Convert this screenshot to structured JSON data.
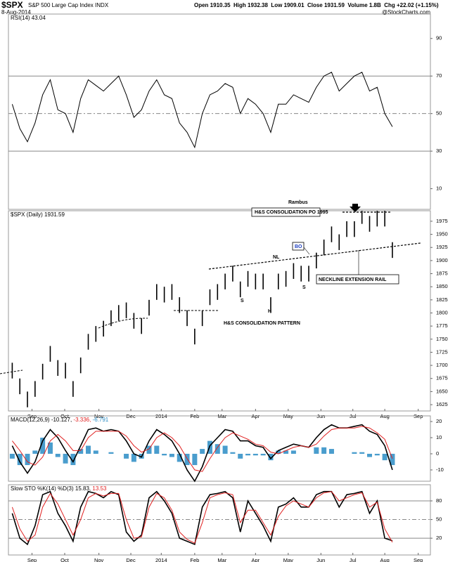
{
  "header": {
    "symbol": "$SPX",
    "name": "S&P 500 Large Cap Index",
    "exchange": "INDX",
    "date": "8-Aug-2014",
    "quote": "Open 1910.35  High 1932.38  Low 1909.01  Close 1931.59  Volume 1.8B  Chg +22.02 (+1.15%)",
    "watermark": "@StockCharts.com"
  },
  "chart_data": [
    {
      "type": "line",
      "title": "RSI(14) 43.04",
      "color": "#000000",
      "values": [
        55,
        42,
        35,
        45,
        60,
        68,
        52,
        50,
        40,
        58,
        68,
        65,
        62,
        66,
        70,
        60,
        48,
        52,
        62,
        68,
        60,
        58,
        45,
        40,
        32,
        50,
        60,
        62,
        66,
        64,
        50,
        58,
        55,
        50,
        40,
        55,
        55,
        60,
        58,
        56,
        64,
        70,
        72,
        62,
        66,
        70,
        72,
        62,
        64,
        50,
        43
      ],
      "xlim": [
        -0.5,
        55
      ],
      "ylim": [
        -1,
        103
      ],
      "yticks": [
        10,
        30,
        50,
        70,
        90
      ],
      "hlines": [
        {
          "value": 70,
          "style": "solid"
        },
        {
          "value": 50,
          "style": "dashed"
        },
        {
          "value": 30,
          "style": "solid"
        }
      ]
    },
    {
      "type": "ohlc",
      "title": "$SPX (Daily) 1931.59",
      "color": "#000000",
      "high": [
        1705,
        1675,
        1650,
        1670,
        1703,
        1737,
        1710,
        1705,
        1670,
        1715,
        1760,
        1775,
        1785,
        1805,
        1815,
        1820,
        1800,
        1790,
        1825,
        1855,
        1850,
        1855,
        1830,
        1805,
        1770,
        1805,
        1845,
        1855,
        1875,
        1890,
        1860,
        1880,
        1875,
        1875,
        1830,
        1875,
        1880,
        1895,
        1890,
        1890,
        1915,
        1940,
        1965,
        1950,
        1975,
        1975,
        1995,
        1985,
        1995,
        1995,
        1935
      ],
      "low": [
        1675,
        1645,
        1620,
        1640,
        1673,
        1707,
        1680,
        1675,
        1640,
        1685,
        1730,
        1745,
        1755,
        1775,
        1785,
        1790,
        1770,
        1760,
        1795,
        1825,
        1820,
        1825,
        1800,
        1775,
        1740,
        1775,
        1815,
        1825,
        1845,
        1860,
        1830,
        1850,
        1845,
        1845,
        1800,
        1845,
        1850,
        1865,
        1860,
        1860,
        1885,
        1910,
        1935,
        1920,
        1945,
        1945,
        1970,
        1955,
        1965,
        1965,
        1905
      ],
      "xlim": [
        -0.5,
        55
      ],
      "ylim": [
        1613,
        1995
      ],
      "yticks": [
        1625,
        1650,
        1675,
        1700,
        1725,
        1750,
        1775,
        1800,
        1825,
        1850,
        1875,
        1900,
        1925,
        1950,
        1975
      ],
      "xticks": [
        {
          "value": 2.6,
          "label": "Sep"
        },
        {
          "value": 6.9,
          "label": "Oct"
        },
        {
          "value": 11.4,
          "label": "Nov"
        },
        {
          "value": 15.6,
          "label": "Dec"
        },
        {
          "value": 19.6,
          "label": "2014"
        },
        {
          "value": 24,
          "label": "Feb"
        },
        {
          "value": 27.6,
          "label": "Mar"
        },
        {
          "value": 32,
          "label": "Apr"
        },
        {
          "value": 36.3,
          "label": "May"
        },
        {
          "value": 40.6,
          "label": "Jun"
        },
        {
          "value": 44.8,
          "label": "Jul"
        },
        {
          "value": 49,
          "label": "Aug"
        },
        {
          "value": 53.4,
          "label": "Sep"
        }
      ],
      "annotations": [
        "Rambus",
        "H&S CONSOLIDATION PO 1995",
        "NL",
        "BO",
        "S",
        "H",
        "S",
        "H&S CONSOLIDATION PATTERN",
        "NECKLINE EXTENSION RAIL"
      ]
    },
    {
      "type": "line",
      "title": "MACD(12,26,9)",
      "series": [
        {
          "name": "-10.127,",
          "color": "#000000",
          "values": [
            5,
            -5,
            -12,
            -5,
            8,
            15,
            10,
            2,
            -5,
            5,
            15,
            16,
            14,
            15,
            14,
            8,
            0,
            -2,
            8,
            15,
            12,
            8,
            0,
            -10,
            -17,
            -8,
            5,
            10,
            15,
            14,
            8,
            8,
            5,
            4,
            -3,
            2,
            4,
            6,
            5,
            4,
            10,
            15,
            18,
            16,
            16,
            17,
            18,
            14,
            12,
            5,
            -10
          ]
        },
        {
          "name": "-3.336,",
          "color": "#e02020",
          "values": [
            8,
            2,
            -5,
            -7,
            -2,
            8,
            12,
            8,
            2,
            2,
            10,
            14,
            14,
            14,
            14,
            11,
            5,
            1,
            3,
            10,
            13,
            10,
            5,
            -3,
            -10,
            -11,
            -3,
            4,
            10,
            13,
            11,
            9,
            6,
            5,
            1,
            0,
            2,
            4,
            5,
            4,
            6,
            11,
            15,
            16,
            16,
            16,
            17,
            16,
            13,
            9,
            -3
          ]
        },
        {
          "name": "-6.791",
          "color": "#2a8cc4",
          "type": "bar",
          "values": [
            -3,
            -7,
            -7,
            2,
            10,
            7,
            -2,
            -6,
            -7,
            3,
            5,
            2,
            0,
            1,
            0,
            -3,
            -5,
            -3,
            5,
            5,
            -1,
            -2,
            -5,
            -7,
            -7,
            3,
            8,
            6,
            5,
            1,
            -3,
            -1,
            -1,
            -1,
            -4,
            2,
            2,
            2,
            0,
            0,
            4,
            4,
            3,
            0,
            0,
            1,
            1,
            -2,
            -1,
            -4,
            -7
          ]
        }
      ],
      "xlim": [
        -0.5,
        55
      ],
      "ylim": [
        -17,
        23.5
      ],
      "yticks": [
        -10,
        0,
        10,
        20
      ]
    },
    {
      "type": "line",
      "title": "Slow STO %K(14) %D(3)",
      "series": [
        {
          "name": "15.83,",
          "color": "#000000",
          "values": [
            60,
            20,
            10,
            40,
            90,
            95,
            60,
            40,
            15,
            70,
            95,
            92,
            85,
            95,
            90,
            30,
            15,
            25,
            85,
            95,
            80,
            60,
            20,
            15,
            10,
            70,
            90,
            92,
            95,
            85,
            30,
            80,
            60,
            40,
            15,
            70,
            75,
            85,
            70,
            70,
            90,
            95,
            95,
            70,
            90,
            92,
            95,
            60,
            80,
            20,
            15.83
          ]
        },
        {
          "name": "13.53",
          "color": "#e02020",
          "values": [
            70,
            35,
            15,
            25,
            70,
            92,
            75,
            50,
            25,
            50,
            85,
            92,
            88,
            92,
            92,
            50,
            20,
            22,
            70,
            92,
            85,
            65,
            30,
            18,
            12,
            45,
            85,
            90,
            93,
            90,
            45,
            65,
            65,
            45,
            25,
            55,
            72,
            80,
            75,
            70,
            85,
            93,
            95,
            80,
            85,
            90,
            93,
            70,
            78,
            35,
            13.53
          ]
        }
      ],
      "xlim": [
        -0.5,
        55
      ],
      "ylim": [
        -7,
        106
      ],
      "yticks": [
        20,
        50,
        80
      ],
      "hlines": [
        {
          "value": 80,
          "style": "solid"
        },
        {
          "value": 50,
          "style": "dashed"
        },
        {
          "value": 20,
          "style": "solid"
        }
      ],
      "xticks": [
        {
          "value": 2.6,
          "label": "Sep"
        },
        {
          "value": 6.9,
          "label": "Oct"
        },
        {
          "value": 11.4,
          "label": "Nov"
        },
        {
          "value": 15.6,
          "label": "Dec"
        },
        {
          "value": 19.6,
          "label": "2014"
        },
        {
          "value": 24,
          "label": "Feb"
        },
        {
          "value": 27.6,
          "label": "Mar"
        },
        {
          "value": 32,
          "label": "Apr"
        },
        {
          "value": 36.3,
          "label": "May"
        },
        {
          "value": 40.6,
          "label": "Jun"
        },
        {
          "value": 44.8,
          "label": "Jul"
        },
        {
          "value": 49,
          "label": "Aug"
        },
        {
          "value": 53.4,
          "label": "Sep"
        }
      ]
    }
  ]
}
